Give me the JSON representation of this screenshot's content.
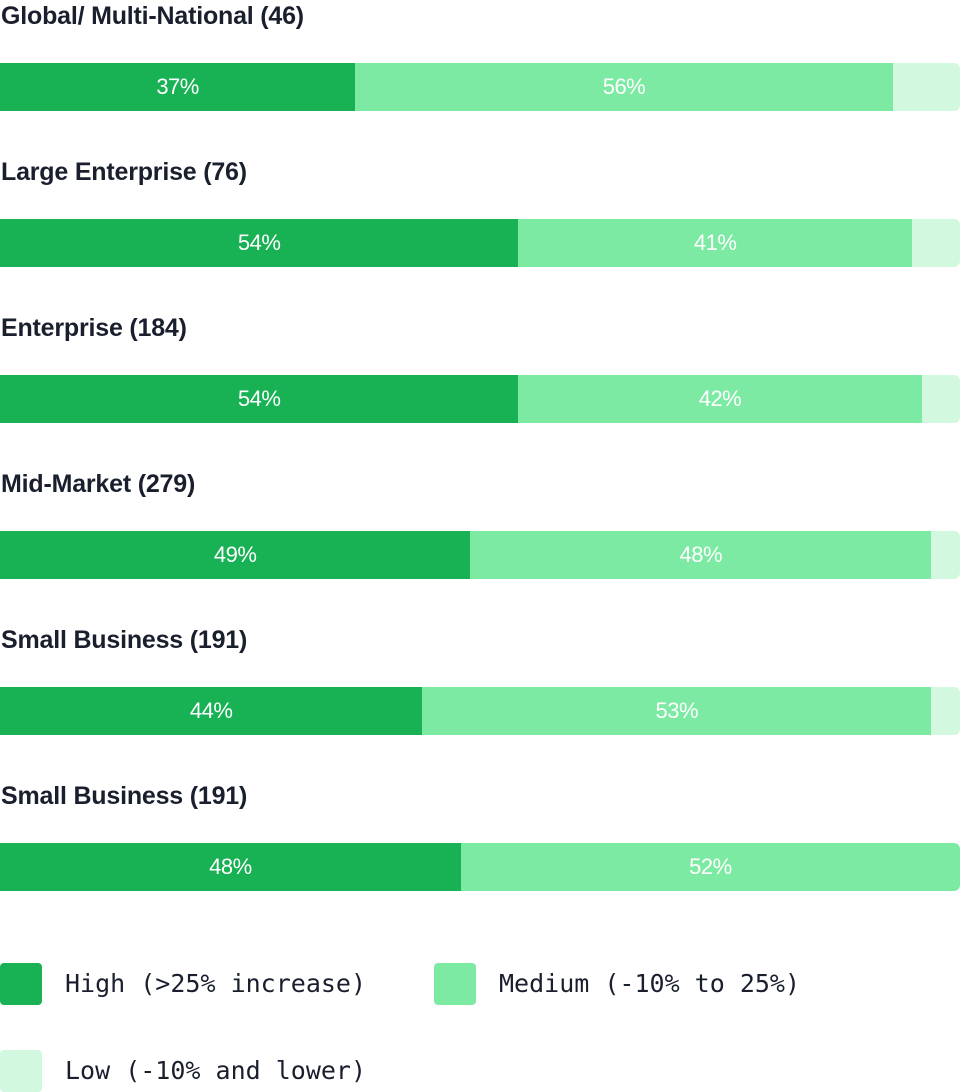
{
  "chart_data": {
    "type": "bar",
    "orientation": "horizontal",
    "stacked": true,
    "normalized": true,
    "categories": [
      "Global/ Multi-National (46)",
      "Large Enterprise (76)",
      "Enterprise (184)",
      "Mid-Market (279)",
      "Small Business (191)",
      "Small Business (191)"
    ],
    "series": [
      {
        "name": "High (>25% increase)",
        "color": "#18b154",
        "values": [
          37,
          54,
          54,
          49,
          44,
          48
        ],
        "labels": [
          "37%",
          "54%",
          "54%",
          "49%",
          "44%",
          "48%"
        ]
      },
      {
        "name": "Medium (-10% to 25%)",
        "color": "#7deaa3",
        "values": [
          56,
          41,
          42,
          48,
          53,
          52
        ],
        "labels": [
          "56%",
          "41%",
          "42%",
          "48%",
          "53%",
          "52%"
        ]
      },
      {
        "name": "Low (-10% and lower)",
        "color": "#d2f8df",
        "values": [
          7,
          5,
          4,
          3,
          3,
          0
        ]
      }
    ],
    "xlim": [
      0,
      100
    ],
    "grid": false,
    "legend_position": "bottom"
  }
}
